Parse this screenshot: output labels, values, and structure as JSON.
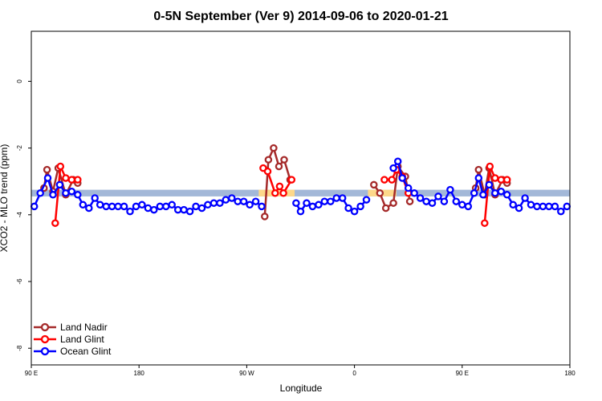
{
  "chart_data": {
    "type": "line",
    "title": "0-5N September (Ver 9)   2014-09-06 to 2020-01-21",
    "xlabel": "Longitude",
    "ylabel": "XCO2 - MLO trend (ppm)",
    "xlim": [
      0,
      360
    ],
    "ylim": [
      -8.5,
      1.5
    ],
    "x_ticks": [
      {
        "value": 0,
        "label": "90 E"
      },
      {
        "value": 72,
        "label": "180"
      },
      {
        "value": 144,
        "label": "90 W"
      },
      {
        "value": 216,
        "label": "0"
      },
      {
        "value": 288,
        "label": "90 E"
      },
      {
        "value": 360,
        "label": "180"
      }
    ],
    "y_ticks": [
      {
        "value": 0,
        "label": "0"
      },
      {
        "value": -2,
        "label": "-2"
      },
      {
        "value": -4,
        "label": "-4"
      },
      {
        "value": -6,
        "label": "-6"
      },
      {
        "value": -8,
        "label": "-8"
      }
    ],
    "grid": false,
    "legend_position": "bottom-left",
    "reference_band": {
      "y_low": -3.45,
      "y_high": -3.25,
      "color": "#a3b8d8"
    },
    "land_highlights": [
      {
        "x": [
          152,
          176
        ],
        "y_low": -3.45,
        "y_high": -3.25,
        "color": "#fdd88a"
      },
      {
        "x": [
          225,
          244
        ],
        "y_low": -3.45,
        "y_high": -3.25,
        "color": "#fdd88a"
      }
    ],
    "series": [
      {
        "name": "Land Nadir",
        "color": "#a52a2a",
        "segments": [
          [
            [
              8.5,
              -3.2
            ],
            [
              10.5,
              -2.65
            ],
            [
              14.5,
              -3.3
            ],
            [
              18,
              -2.6
            ],
            [
              23,
              -3.4
            ],
            [
              28,
              -2.95
            ],
            [
              31,
              -3.05
            ]
          ],
          [
            [
              156,
              -4.05
            ],
            [
              158.5,
              -2.35
            ],
            [
              162,
              -2.0
            ],
            [
              165.5,
              -2.55
            ],
            [
              169,
              -2.35
            ],
            [
              173,
              -2.95
            ]
          ],
          [
            [
              229,
              -3.1
            ],
            [
              233,
              -3.35
            ],
            [
              237,
              -3.8
            ],
            [
              242,
              -3.65
            ],
            [
              245,
              -2.55
            ],
            [
              250,
              -2.85
            ],
            [
              253,
              -3.6
            ]
          ],
          [
            [
              297,
              -3.2
            ],
            [
              299,
              -2.65
            ],
            [
              303,
              -3.4
            ],
            [
              306,
              -2.6
            ],
            [
              310,
              -3.4
            ],
            [
              315,
              -2.95
            ],
            [
              318,
              -3.05
            ]
          ]
        ]
      },
      {
        "name": "Land Glint",
        "color": "#ff0000",
        "segments": [
          [
            [
              16,
              -4.25
            ],
            [
              19.5,
              -2.55
            ],
            [
              23,
              -2.9
            ],
            [
              27,
              -2.95
            ],
            [
              31,
              -2.95
            ]
          ],
          [
            [
              155,
              -2.6
            ],
            [
              158,
              -2.7
            ],
            [
              163,
              -3.35
            ],
            [
              166,
              -3.15
            ],
            [
              168.5,
              -3.35
            ],
            [
              174,
              -2.95
            ]
          ],
          [
            [
              236,
              -2.95
            ],
            [
              241,
              -2.95
            ],
            [
              244,
              -2.65
            ],
            [
              248,
              -2.85
            ],
            [
              252,
              -3.35
            ]
          ],
          [
            [
              303,
              -4.25
            ],
            [
              306.5,
              -2.55
            ],
            [
              310,
              -2.9
            ],
            [
              314,
              -2.95
            ],
            [
              318,
              -2.95
            ]
          ]
        ]
      },
      {
        "name": "Ocean Glint",
        "color": "#0000ff",
        "segments": [
          [
            [
              2,
              -3.75
            ],
            [
              6,
              -3.35
            ],
            [
              11,
              -2.9
            ],
            [
              14.5,
              -3.4
            ],
            [
              19,
              -3.1
            ],
            [
              23,
              -3.35
            ],
            [
              27,
              -3.3
            ],
            [
              31,
              -3.4
            ],
            [
              34.5,
              -3.7
            ],
            [
              38.5,
              -3.8
            ],
            [
              42.5,
              -3.5
            ],
            [
              46,
              -3.7
            ],
            [
              50,
              -3.75
            ],
            [
              54,
              -3.75
            ],
            [
              58,
              -3.75
            ],
            [
              62,
              -3.75
            ],
            [
              66,
              -3.9
            ],
            [
              70,
              -3.75
            ],
            [
              74,
              -3.7
            ],
            [
              78,
              -3.8
            ],
            [
              82,
              -3.85
            ],
            [
              86,
              -3.75
            ],
            [
              90,
              -3.75
            ],
            [
              94,
              -3.7
            ],
            [
              98,
              -3.85
            ],
            [
              102,
              -3.85
            ],
            [
              106,
              -3.9
            ],
            [
              110,
              -3.75
            ],
            [
              114,
              -3.8
            ],
            [
              118,
              -3.7
            ],
            [
              122,
              -3.65
            ],
            [
              126,
              -3.65
            ],
            [
              130,
              -3.55
            ],
            [
              134,
              -3.5
            ],
            [
              138,
              -3.6
            ],
            [
              142,
              -3.6
            ],
            [
              146,
              -3.7
            ],
            [
              150,
              -3.6
            ],
            [
              154,
              -3.75
            ]
          ],
          [
            [
              177,
              -3.65
            ],
            [
              180,
              -3.9
            ],
            [
              184,
              -3.65
            ],
            [
              188,
              -3.75
            ],
            [
              192,
              -3.7
            ],
            [
              196,
              -3.6
            ],
            [
              200,
              -3.6
            ],
            [
              204,
              -3.5
            ],
            [
              208,
              -3.5
            ],
            [
              212,
              -3.8
            ],
            [
              216,
              -3.9
            ],
            [
              220,
              -3.75
            ],
            [
              224,
              -3.55
            ]
          ],
          [
            [
              242,
              -2.6
            ],
            [
              245,
              -2.4
            ],
            [
              248,
              -2.9
            ],
            [
              252,
              -3.2
            ],
            [
              256,
              -3.35
            ],
            [
              260,
              -3.5
            ],
            [
              264,
              -3.6
            ],
            [
              268,
              -3.65
            ],
            [
              272,
              -3.45
            ],
            [
              276,
              -3.6
            ],
            [
              280,
              -3.25
            ],
            [
              284,
              -3.6
            ],
            [
              288,
              -3.7
            ],
            [
              292,
              -3.75
            ],
            [
              296,
              -3.35
            ],
            [
              299,
              -2.9
            ],
            [
              302,
              -3.4
            ],
            [
              306,
              -3.1
            ],
            [
              310,
              -3.35
            ],
            [
              314,
              -3.3
            ],
            [
              318,
              -3.4
            ],
            [
              322,
              -3.7
            ],
            [
              326,
              -3.8
            ],
            [
              330,
              -3.5
            ],
            [
              334,
              -3.7
            ],
            [
              338,
              -3.75
            ],
            [
              342,
              -3.75
            ],
            [
              346,
              -3.75
            ],
            [
              350,
              -3.75
            ],
            [
              354,
              -3.9
            ],
            [
              358,
              -3.75
            ]
          ]
        ]
      }
    ]
  }
}
